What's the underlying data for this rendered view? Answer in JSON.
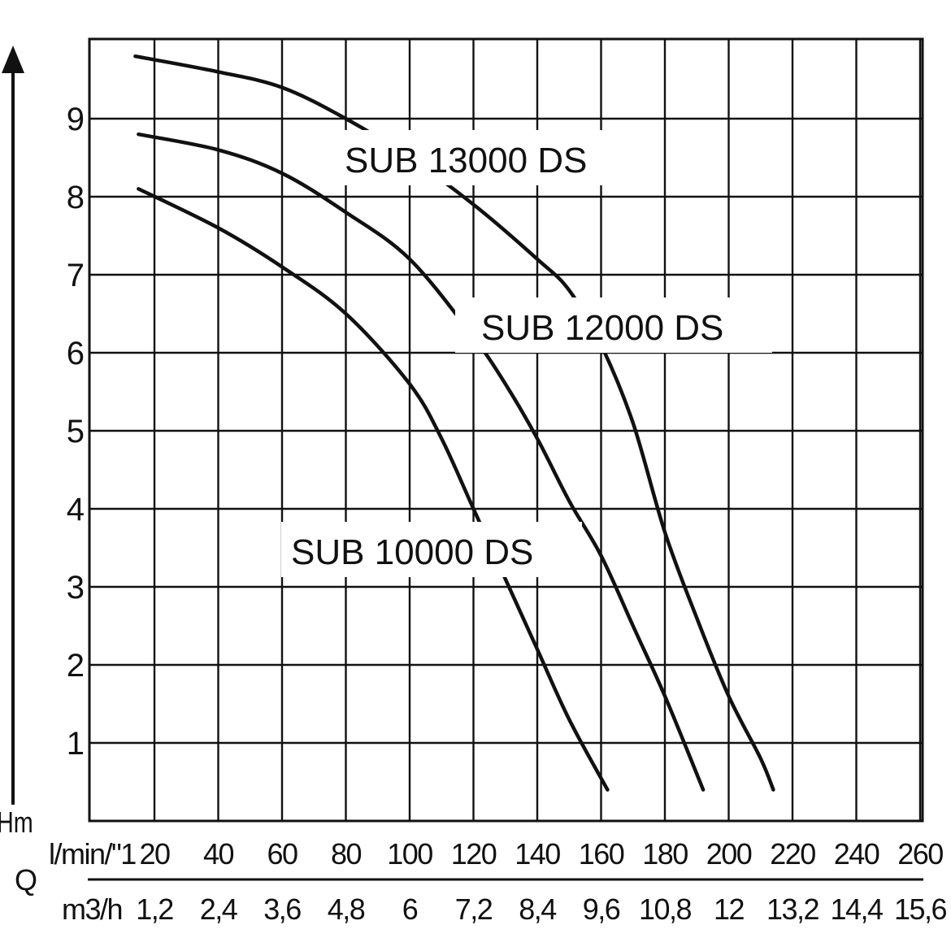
{
  "chart_data": {
    "type": "line",
    "y_axis": {
      "label": "Hm",
      "ticks": [
        "1",
        "2",
        "3",
        "4",
        "5",
        "6",
        "7",
        "8",
        "9"
      ],
      "ylim": [
        0,
        10
      ]
    },
    "x_axis": {
      "quantity_label": "Q",
      "unit_primary": "l/min/\"1",
      "ticks_primary": [
        "20",
        "40",
        "60",
        "80",
        "100",
        "120",
        "140",
        "160",
        "180",
        "200",
        "220",
        "240",
        "260"
      ],
      "unit_secondary": "m3/h",
      "ticks_secondary": [
        "1,2",
        "2,4",
        "3,6",
        "4,8",
        "6",
        "7,2",
        "8,4",
        "9,6",
        "10,8",
        "12",
        "13,2",
        "14,4",
        "15,6"
      ],
      "xlim": [
        0,
        260
      ]
    },
    "grid": true,
    "series": [
      {
        "name": "SUB 13000 DS",
        "x": [
          14,
          40,
          60,
          80,
          100,
          120,
          140,
          150,
          160,
          170,
          180,
          190,
          200,
          210,
          214
        ],
        "y": [
          9.8,
          9.6,
          9.4,
          9.0,
          8.5,
          7.9,
          7.2,
          6.8,
          6.1,
          5.1,
          3.7,
          2.6,
          1.6,
          0.8,
          0.4
        ]
      },
      {
        "name": "SUB 12000 DS",
        "x": [
          15,
          40,
          60,
          80,
          100,
          120,
          130,
          140,
          150,
          160,
          170,
          180,
          192
        ],
        "y": [
          8.8,
          8.6,
          8.3,
          7.8,
          7.2,
          6.2,
          5.6,
          4.9,
          4.1,
          3.4,
          2.5,
          1.6,
          0.4
        ]
      },
      {
        "name": "SUB 10000 DS",
        "x": [
          15,
          40,
          60,
          80,
          100,
          110,
          120,
          130,
          140,
          150,
          162
        ],
        "y": [
          8.1,
          7.6,
          7.1,
          6.5,
          5.6,
          4.9,
          4.0,
          3.1,
          2.2,
          1.3,
          0.4
        ]
      }
    ]
  }
}
